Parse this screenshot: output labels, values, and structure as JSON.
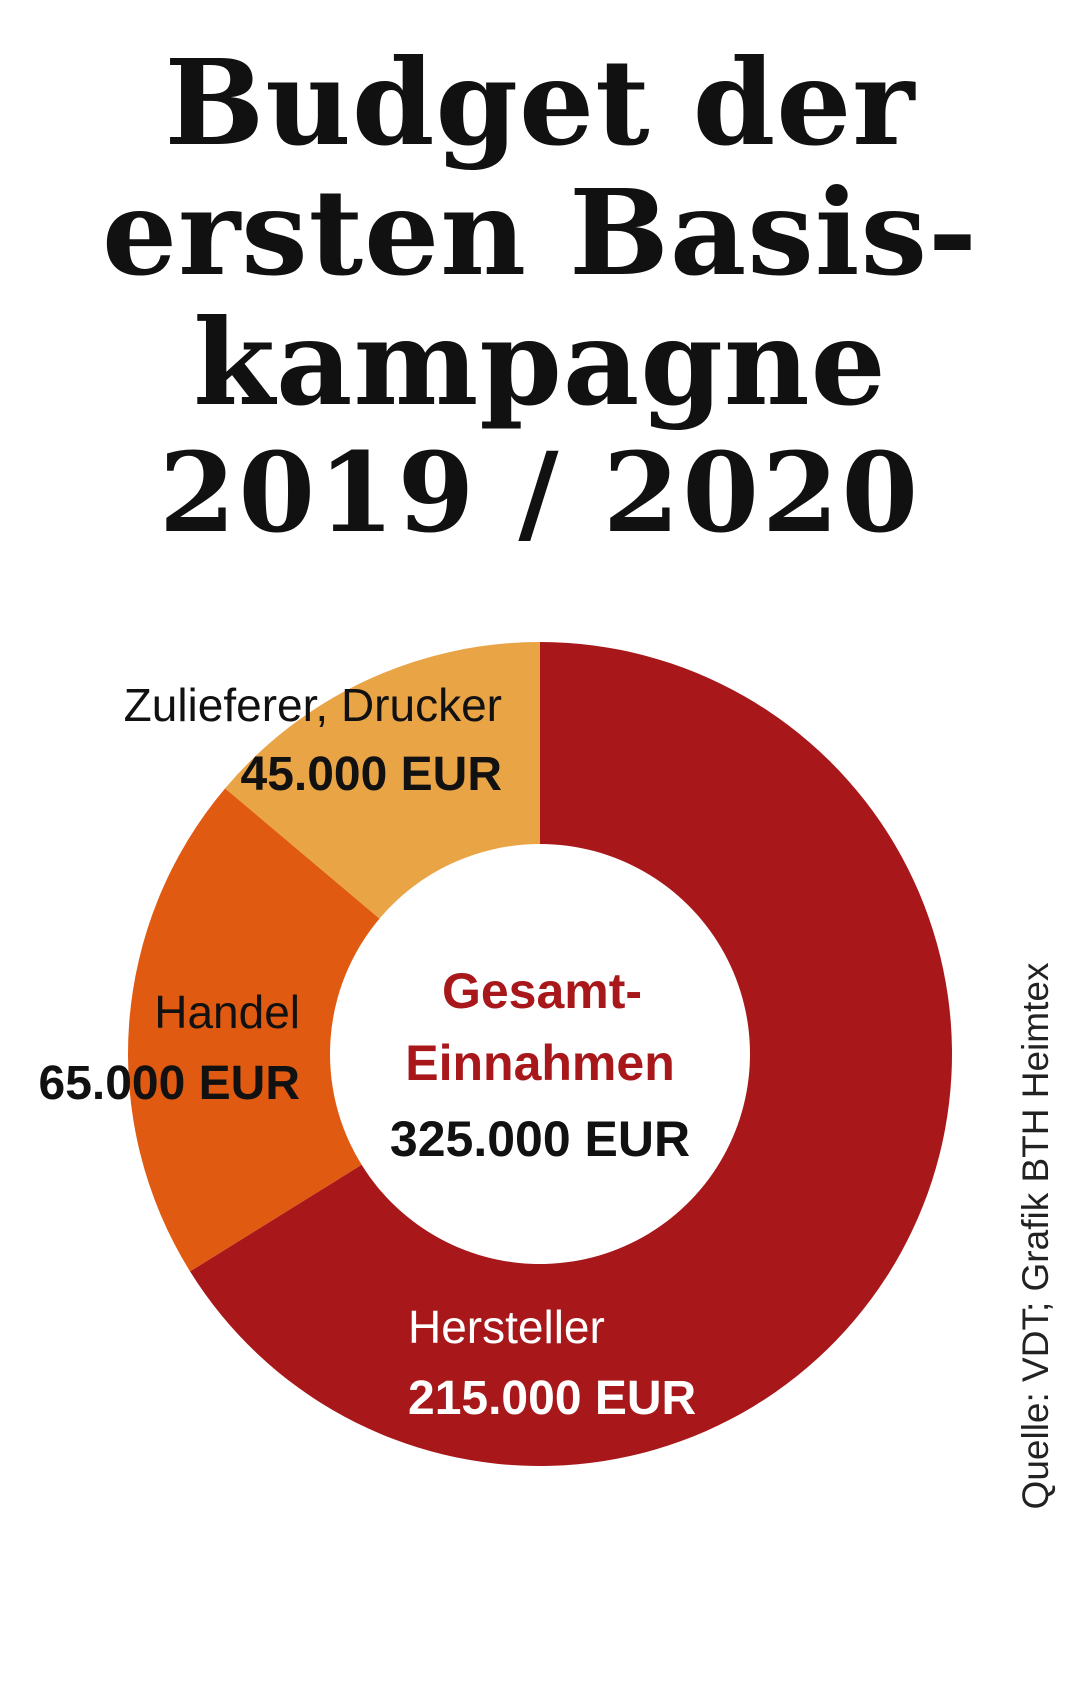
{
  "title": {
    "line1": "Budget der",
    "line2": "ersten Basis-",
    "line3": "kampagne",
    "line4": "2019 / 2020"
  },
  "source": "Quelle: VDT; Grafik BTH Heimtex",
  "colors": {
    "hersteller": "#A8181B",
    "handel": "#E05A12",
    "zulieferer": "#E9A445",
    "center_label": "#A8181B",
    "text_dark": "#111111",
    "text_light": "#ffffff"
  },
  "chart_data": {
    "type": "pie",
    "variant": "donut",
    "center": {
      "label_line1": "Gesamt-",
      "label_line2": "Einnahmen",
      "total_text": "325.000 EUR",
      "total": 325000
    },
    "slices": [
      {
        "name": "Hersteller",
        "value": 215000,
        "value_text": "215.000 EUR",
        "color": "#A8181B"
      },
      {
        "name": "Handel",
        "value": 65000,
        "value_text": "65.000 EUR",
        "color": "#E05A12"
      },
      {
        "name": "Zulieferer, Drucker",
        "value": 45000,
        "value_text": "45.000 EUR",
        "color": "#E9A445"
      }
    ],
    "unit": "EUR"
  }
}
